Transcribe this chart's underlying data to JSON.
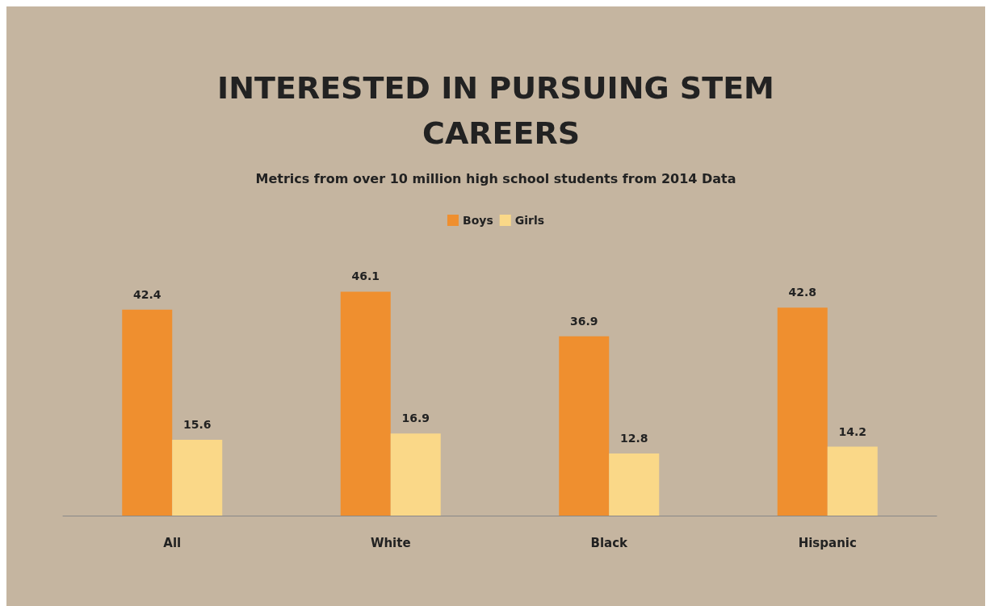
{
  "chart_data": {
    "type": "bar",
    "title": "INTERESTED IN PURSUING STEM CAREERS",
    "subtitle": "Metrics from over 10 million high school students from 2014 Data",
    "categories": [
      "All",
      "White",
      "Black",
      "Hispanic"
    ],
    "series": [
      {
        "name": "Boys",
        "color": "#ef8f2f",
        "values": [
          42.4,
          46.1,
          36.9,
          42.8
        ]
      },
      {
        "name": "Girls",
        "color": "#fad888",
        "values": [
          15.6,
          16.9,
          12.8,
          14.2
        ]
      }
    ],
    "data_labels": true,
    "legend": "top"
  }
}
